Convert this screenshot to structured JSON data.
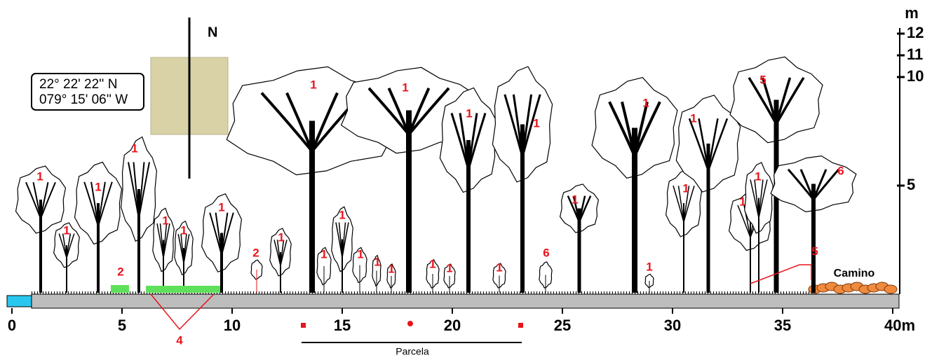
{
  "north": "N",
  "coordinates": [
    "22° 22' 22'' N",
    "079° 15' 06'' W"
  ],
  "x_axis": {
    "ticks": [
      0,
      5,
      10,
      15,
      20,
      25,
      30,
      35,
      {
        "value": 40,
        "label": "40m"
      }
    ]
  },
  "y_axis": {
    "unit": "m",
    "ticks": [
      5,
      10,
      11,
      12
    ]
  },
  "trees": [
    "1",
    "1",
    "1",
    "1",
    "1",
    "1",
    "1",
    "2",
    "1",
    "1",
    "1",
    "1",
    "1",
    "1",
    "1",
    "1",
    "1",
    "1",
    "1",
    "1",
    "1",
    "6",
    "1",
    "1",
    "1",
    "1",
    "1",
    "1",
    "1",
    "5",
    "6"
  ],
  "grass_label": "2",
  "annotations": {
    "grass": "4",
    "seedlings": "5",
    "road": "Camino",
    "plot": "Parcela"
  }
}
